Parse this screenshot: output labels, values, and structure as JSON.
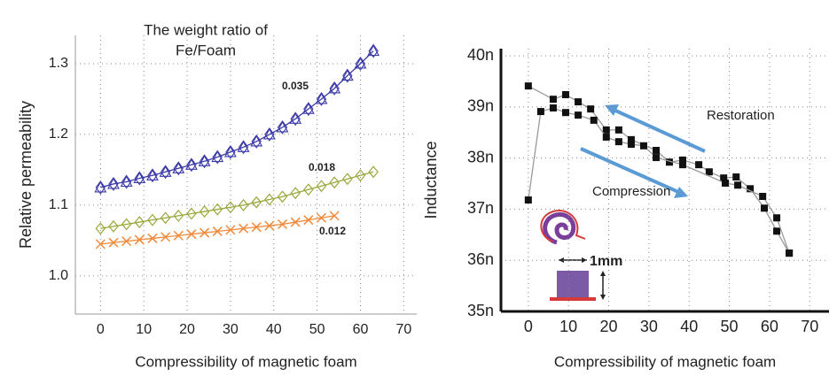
{
  "chart_data": [
    {
      "type": "line",
      "title": [
        "The weight ratio of",
        "Fe/Foam"
      ],
      "x_label": "Compressibility of magnetic foam",
      "y_label": "Relative permeability",
      "xlim": [
        -5.8,
        73
      ],
      "ylim": [
        0.946,
        1.34
      ],
      "xticks": [
        0,
        10,
        20,
        30,
        40,
        50,
        60,
        70
      ],
      "yticks": [
        {
          "value": 1,
          "label": "1.0"
        },
        1.1,
        1.2,
        1.3
      ],
      "grid": true,
      "series": [
        {
          "name": "0.035",
          "color": "#3b3aa8",
          "marker": "diamond-triangle",
          "x": [
            0,
            3,
            6,
            9,
            12,
            15,
            18,
            21,
            24,
            27,
            30,
            33,
            36,
            39,
            42,
            45,
            48,
            51,
            54,
            57,
            60,
            63
          ],
          "values": [
            1.125,
            1.13,
            1.133,
            1.138,
            1.142,
            1.147,
            1.152,
            1.157,
            1.162,
            1.168,
            1.175,
            1.182,
            1.19,
            1.2,
            1.21,
            1.222,
            1.236,
            1.25,
            1.265,
            1.283,
            1.3,
            1.318
          ]
        },
        {
          "name": "0.018",
          "color": "#9aa73a",
          "marker": "diamond",
          "x": [
            0,
            3,
            6,
            9,
            12,
            15,
            18,
            21,
            24,
            27,
            30,
            33,
            36,
            39,
            42,
            45,
            48,
            51,
            54,
            57,
            60,
            63
          ],
          "values": [
            1.067,
            1.07,
            1.073,
            1.076,
            1.079,
            1.082,
            1.085,
            1.088,
            1.091,
            1.094,
            1.097,
            1.1,
            1.104,
            1.108,
            1.112,
            1.117,
            1.122,
            1.127,
            1.132,
            1.137,
            1.142,
            1.147
          ]
        },
        {
          "name": "0.012",
          "color": "#f08a3c",
          "marker": "cross",
          "x": [
            0,
            3,
            6,
            9,
            12,
            15,
            18,
            21,
            24,
            27,
            30,
            33,
            36,
            39,
            42,
            45,
            48,
            51,
            54
          ],
          "values": [
            1.045,
            1.047,
            1.049,
            1.051,
            1.053,
            1.055,
            1.057,
            1.059,
            1.061,
            1.063,
            1.065,
            1.067,
            1.069,
            1.071,
            1.073,
            1.076,
            1.079,
            1.082,
            1.085
          ]
        }
      ]
    },
    {
      "type": "line",
      "x_label": "Compressibility of magnetic foam",
      "y_label": "Inductance",
      "xlim": [
        -6.8,
        74.8
      ],
      "ylim": [
        35,
        40.14
      ],
      "xticks": [
        0,
        10,
        20,
        30,
        40,
        50,
        60,
        70
      ],
      "yticks": [
        {
          "value": 35,
          "label": "35n"
        },
        {
          "value": 36,
          "label": "36n"
        },
        {
          "value": 37,
          "label": "37n"
        },
        {
          "value": 38,
          "label": "38n"
        },
        {
          "value": 39,
          "label": "39n"
        },
        {
          "value": 40,
          "label": "40n"
        }
      ],
      "grid": true,
      "annotations": [
        "Restoration",
        "Compression",
        "1mm"
      ],
      "series": [
        {
          "color": "#111111",
          "marker": "square",
          "x": [
            0,
            6.2,
            9.3,
            12.4,
            15.5,
            19.4,
            22.5,
            25.6,
            31.8,
            35.1,
            38.4,
            42.4,
            45,
            48.6,
            51.7,
            55.2,
            58.7,
            61.8,
            64.9
          ],
          "values": [
            39.41,
            39.15,
            39.24,
            39.1,
            38.96,
            38.55,
            38.55,
            38.36,
            38.15,
            37.92,
            37.96,
            37.87,
            37.73,
            37.61,
            37.63,
            37.4,
            37.02,
            36.57,
            36.14
          ]
        },
        {
          "color": "#111111",
          "marker": "square",
          "x": [
            0,
            3.1,
            6.2,
            9.3,
            12.4,
            16.3,
            19.4,
            22.5,
            25.6,
            28.7,
            31.8,
            38.4,
            49,
            52.1,
            58.3,
            61.8,
            64.9
          ],
          "values": [
            37.18,
            38.91,
            38.98,
            38.89,
            38.84,
            38.74,
            38.41,
            38.32,
            38.27,
            38.24,
            38.01,
            37.87,
            37.51,
            37.47,
            37.25,
            36.83,
            36.14
          ]
        }
      ]
    }
  ]
}
